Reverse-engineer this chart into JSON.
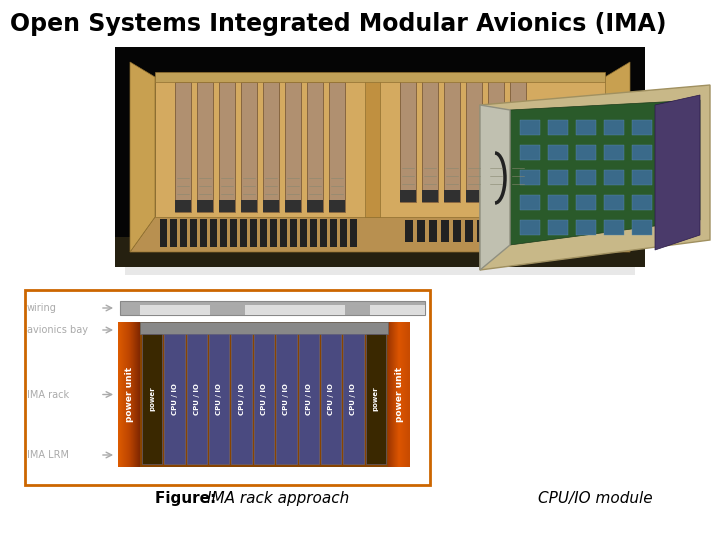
{
  "title": "Open Systems Integrated Modular Avionics (IMA)",
  "title_fontsize": 17,
  "title_fontweight": "bold",
  "bg_color": "#ffffff",
  "figure_caption_bold": "Figure: ",
  "figure_caption_italic": "IMA rack approach",
  "right_caption": "CPU/IO module",
  "left_labels": [
    "wiring",
    "avionics bay",
    "IMA rack",
    "IMA LRM"
  ],
  "orange_bright": "#cc5500",
  "orange_mid": "#aa4400",
  "orange_dark": "#7a2800",
  "slot_color_cpu": "#4a4a80",
  "slot_color_power": "#3a2800",
  "slot_border": "#7777bb",
  "rack_bg": "#884400",
  "wiring_bar_color": "#999999",
  "connector_color": "#aaaaaa",
  "diag_border": "#cc6600",
  "label_color": "#aaaaaa",
  "arrow_color": "#aaaaaa",
  "slot_labels": [
    "power",
    "CPU / IO",
    "CPU / IO",
    "CPU / IO",
    "CPU / IO",
    "CPU / IO",
    "CPU / IO",
    "CPU / IO",
    "CPU / IO",
    "CPU / IO",
    "power"
  ],
  "photo_bg": "#000000",
  "photo_rack_color": "#c8a060",
  "photo_rack_dark": "#a07838",
  "photo_rack_shadow": "#181818"
}
